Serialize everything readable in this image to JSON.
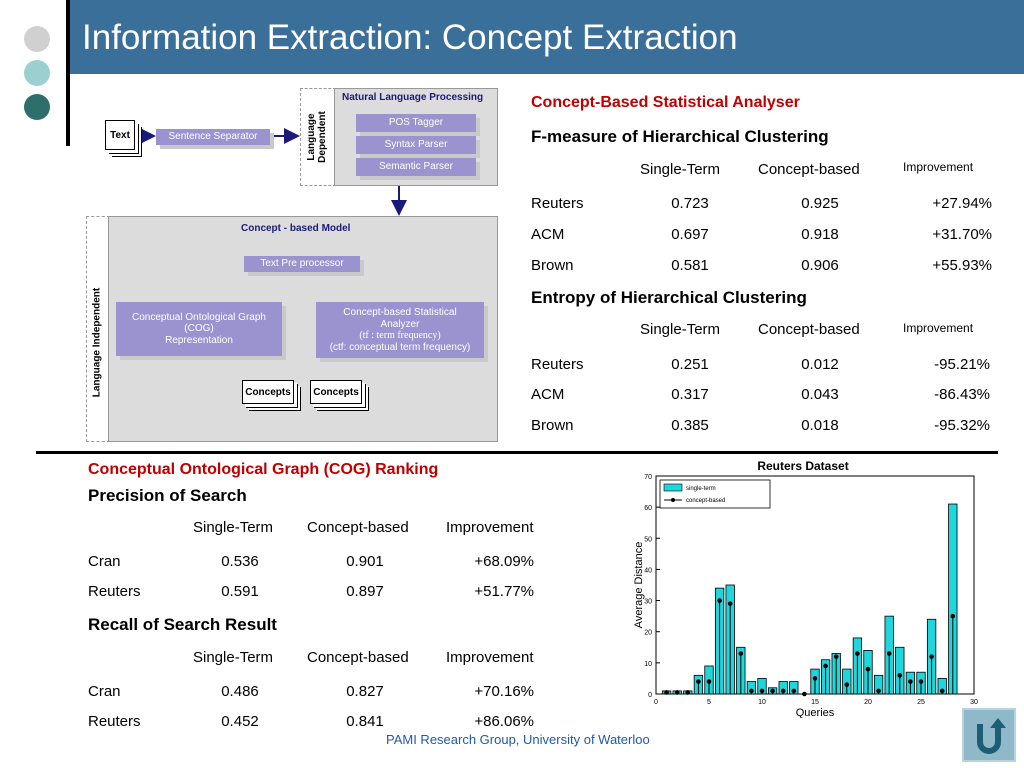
{
  "slide_title": "Information Extraction: Concept Extraction",
  "colors": {
    "title_bar": "#3a6f9a",
    "dot1": "#d0d0d0",
    "dot2": "#9ccfd0",
    "dot3": "#2e6f6d",
    "accent_red": "#c00000",
    "box_fill": "#9a93cf",
    "arrow": "#1a1a7a",
    "bar_fill": "#1fd6dc"
  },
  "diagram": {
    "text_doc": "Text",
    "sentence_separator": "Sentence Separator",
    "language_dependent": [
      "Language",
      "Dependent"
    ],
    "nlp_title": "Natural Language Processing",
    "pos_tagger": "POS Tagger",
    "syntax_parser": "Syntax Parser",
    "semantic_parser": "Semantic Parser",
    "concept_model_title": "Concept - based Model",
    "language_independent": "Language Independent",
    "text_preprocessor": "Text Pre processor",
    "cog_box": [
      "Conceptual Ontological Graph",
      "(COG)",
      "Representation"
    ],
    "csa_box": [
      "Concept-based Statistical",
      "Analyzer",
      "(tf  : term frequency)",
      "(ctf: conceptual term frequency)"
    ],
    "concepts1": "Concepts",
    "concepts2": "Concepts"
  },
  "right": {
    "heading": "Concept-Based Statistical Analyser",
    "fmeasure_title": "F-measure of Hierarchical Clustering",
    "entropy_title": "Entropy of Hierarchical Clustering",
    "col1": "Single-Term",
    "col2": "Concept-based",
    "col3": "Improvement",
    "fmeasure_rows": [
      {
        "name": "Reuters",
        "single": "0.723",
        "concept": "0.925",
        "imp": "+27.94%"
      },
      {
        "name": "ACM",
        "single": "0.697",
        "concept": "0.918",
        "imp": "+31.70%"
      },
      {
        "name": "Brown",
        "single": "0.581",
        "concept": "0.906",
        "imp": "+55.93%"
      }
    ],
    "entropy_rows": [
      {
        "name": "Reuters",
        "single": "0.251",
        "concept": "0.012",
        "imp": "-95.21%"
      },
      {
        "name": "ACM",
        "single": "0.317",
        "concept": "0.043",
        "imp": "-86.43%"
      },
      {
        "name": "Brown",
        "single": "0.385",
        "concept": "0.018",
        "imp": "-95.32%"
      }
    ]
  },
  "bottom": {
    "heading": "Conceptual Ontological Graph (COG) Ranking",
    "precision_title": "Precision of Search",
    "recall_title": "Recall of Search Result",
    "col1": "Single-Term",
    "col2": "Concept-based",
    "col3": "Improvement",
    "precision_rows": [
      {
        "name": "Cran",
        "single": "0.536",
        "concept": "0.901",
        "imp": "+68.09%"
      },
      {
        "name": "Reuters",
        "single": "0.591",
        "concept": "0.897",
        "imp": "+51.77%"
      }
    ],
    "recall_rows": [
      {
        "name": "Cran",
        "single": "0.486",
        "concept": "0.827",
        "imp": "+70.16%"
      },
      {
        "name": "Reuters",
        "single": "0.452",
        "concept": "0.841",
        "imp": "+86.06%"
      }
    ]
  },
  "chart_data": {
    "type": "bar",
    "title": "Reuters Dataset",
    "xlabel": "Queries",
    "ylabel": "Average Distance",
    "xlim": [
      0,
      30
    ],
    "ylim": [
      0,
      70
    ],
    "xticks": [
      "0",
      "5",
      "10",
      "15",
      "20",
      "25",
      "30"
    ],
    "yticks": [
      "0",
      "10",
      "20",
      "30",
      "40",
      "50",
      "60",
      "70"
    ],
    "legend": "top-left",
    "x": [
      1,
      2,
      3,
      4,
      5,
      6,
      7,
      8,
      9,
      10,
      11,
      12,
      13,
      14,
      15,
      16,
      17,
      18,
      19,
      20,
      21,
      22,
      23,
      24,
      25,
      26,
      27,
      28
    ],
    "series": [
      {
        "name": "single-term",
        "values": [
          1,
          1,
          1,
          6,
          9,
          34,
          35,
          15,
          4,
          5,
          2,
          4,
          4,
          0,
          8,
          11,
          13,
          8,
          18,
          14,
          6,
          25,
          15,
          7,
          7,
          24,
          5,
          61
        ]
      },
      {
        "name": "concept-based",
        "values": [
          0.5,
          0.5,
          0.5,
          4,
          4,
          30,
          29,
          13,
          1,
          1,
          1,
          1,
          1,
          0,
          5,
          9,
          12,
          3,
          13,
          8,
          1,
          13,
          6,
          4,
          4,
          12,
          1,
          25
        ]
      }
    ]
  }
}
